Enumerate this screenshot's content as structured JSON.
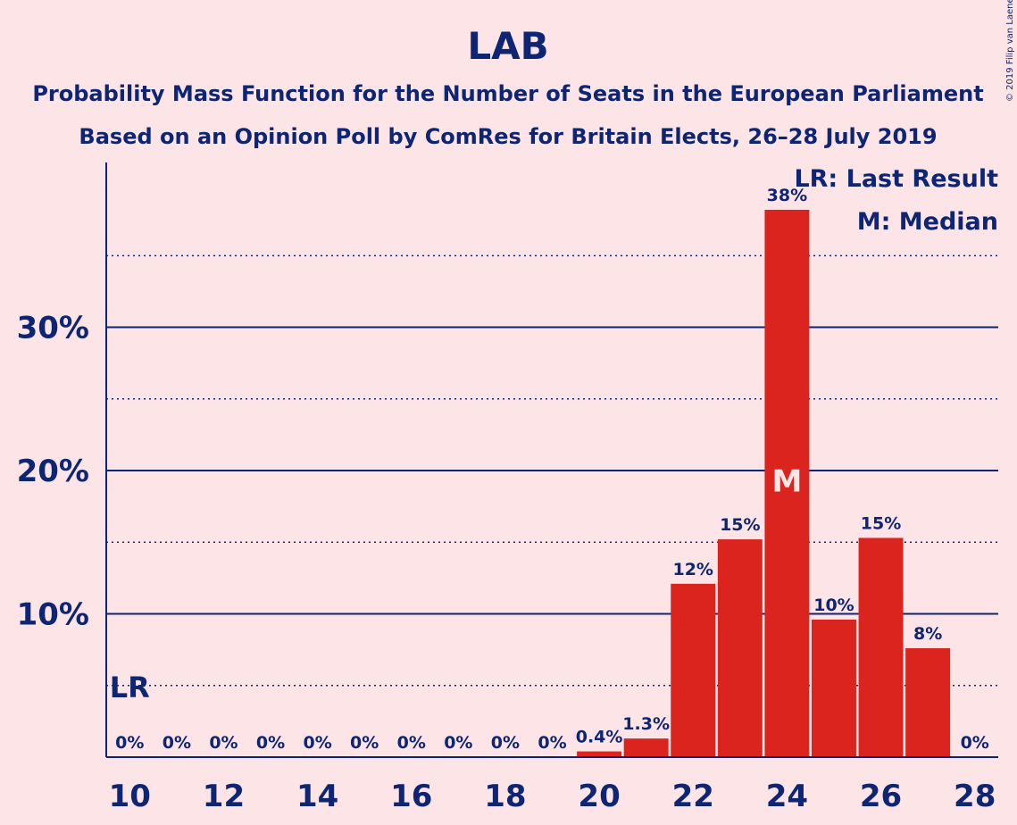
{
  "chart_data": {
    "type": "bar",
    "title": "LAB",
    "subtitle_1": "Probability Mass Function for the Number of Seats in the European Parliament",
    "subtitle_2": "Based on an Opinion Poll by ComRes for Britain Elects, 26–28 July 2019",
    "copyright": "© 2019 Filip van Laenen",
    "x": [
      10,
      11,
      12,
      13,
      14,
      15,
      16,
      17,
      18,
      19,
      20,
      21,
      22,
      23,
      24,
      25,
      26,
      27,
      28
    ],
    "values": [
      0,
      0,
      0,
      0,
      0,
      0,
      0,
      0,
      0,
      0,
      0.4,
      1.3,
      12.1,
      15.2,
      38.2,
      9.6,
      15.3,
      7.6,
      0
    ],
    "data_labels": [
      "0%",
      "0%",
      "0%",
      "0%",
      "0%",
      "0%",
      "0%",
      "0%",
      "0%",
      "0%",
      "0.4%",
      "1.3%",
      "12%",
      "15%",
      "38%",
      "10%",
      "15%",
      "8%",
      "0%"
    ],
    "x_ticks": [
      "10",
      "12",
      "14",
      "16",
      "18",
      "20",
      "22",
      "24",
      "26",
      "28"
    ],
    "y_ticks": [
      "10%",
      "20%",
      "30%"
    ],
    "y_tick_values": [
      10,
      20,
      30
    ],
    "y_minor_gridlines": [
      5,
      15,
      25,
      35
    ],
    "ylim": [
      0,
      41.5
    ],
    "xlim": [
      9.5,
      28.5
    ],
    "last_result": {
      "x": 10,
      "marker": "LR"
    },
    "median": {
      "x": 24,
      "marker": "M"
    },
    "legend": [
      "LR: Last Result",
      "M: Median"
    ],
    "legend_position": "top-right",
    "colors": {
      "bar": "#DC241F",
      "text": "#0D2573",
      "background": "#FDE4E6",
      "median_marker": "#FDE4E6"
    }
  }
}
